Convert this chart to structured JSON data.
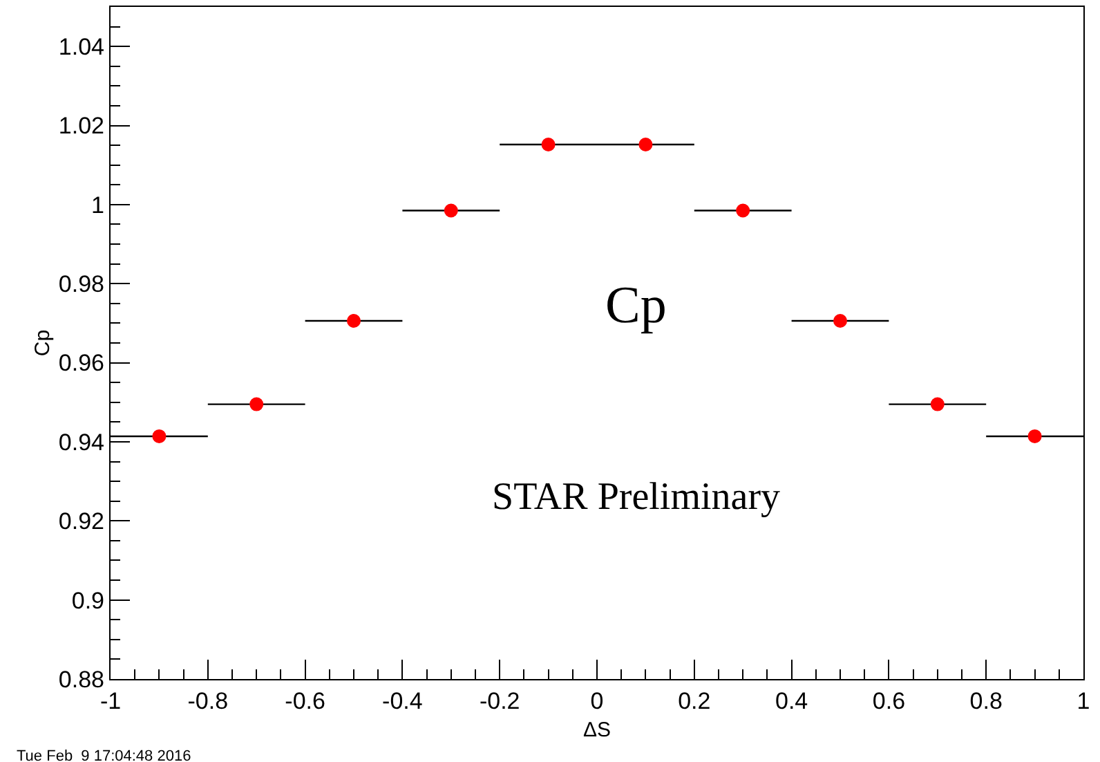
{
  "chart_data": {
    "type": "scatter",
    "xlabel": "ΔS",
    "ylabel": "Cp",
    "x": [
      -0.9,
      -0.7,
      -0.5,
      -0.3,
      -0.1,
      0.1,
      0.3,
      0.5,
      0.7,
      0.9
    ],
    "series": [
      {
        "color": "#ff0000",
        "values": [
          0.9414,
          0.9495,
          0.9706,
          0.9985,
          1.0152,
          1.0152,
          0.9985,
          0.9706,
          0.9495,
          0.9414
        ],
        "xerrors": [
          0.1,
          0.1,
          0.1,
          0.1,
          0.1,
          0.1,
          0.1,
          0.1,
          0.1,
          0.1
        ]
      }
    ],
    "xlim": [
      -1,
      1
    ],
    "xticks": [
      -1,
      -0.8,
      -0.6,
      -0.4,
      -0.2,
      0,
      0.2,
      0.4,
      0.6,
      0.8,
      1
    ],
    "ylim": [
      0.88,
      1.05
    ],
    "yticks": [
      0.88,
      0.9,
      0.92,
      0.94,
      0.96,
      0.98,
      1,
      1.02,
      1.04
    ],
    "annotations": [
      "Cp",
      "STAR Preliminary",
      "Tue Feb  9 17:04:48 2016"
    ],
    "legend": false,
    "marker": "circle"
  }
}
